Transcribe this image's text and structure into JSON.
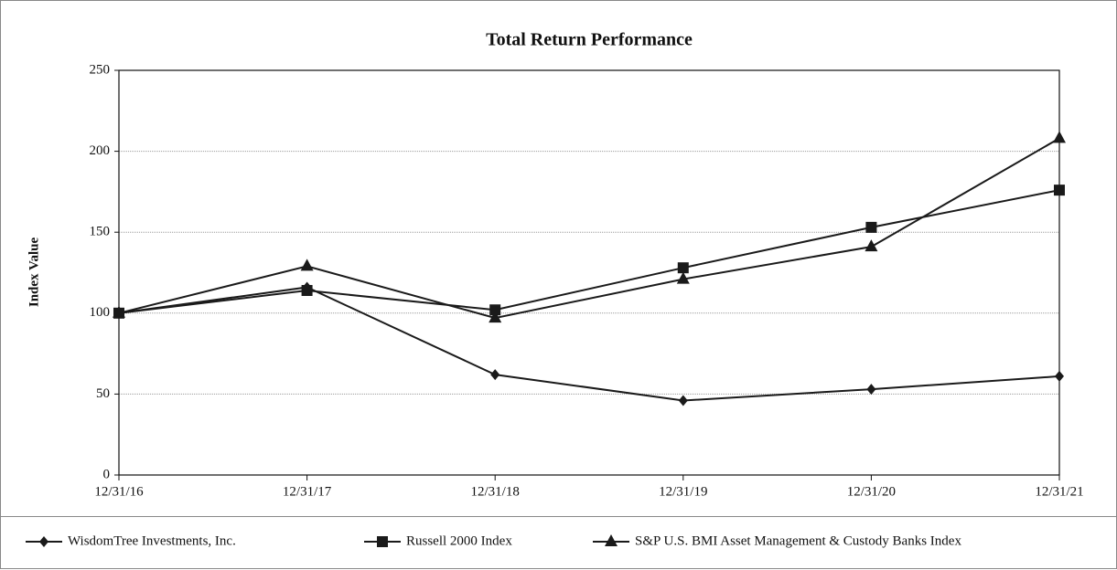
{
  "chart_data": {
    "type": "line",
    "title": "Total Return Performance",
    "y_label": "Index Value",
    "categories": [
      "12/31/16",
      "12/31/17",
      "12/31/18",
      "12/31/19",
      "12/31/20",
      "12/31/21"
    ],
    "series": [
      {
        "name": "WisdomTree Investments, Inc.",
        "color": "#1a1a1a",
        "marker": "diamond",
        "values": [
          100,
          116,
          62,
          46,
          53,
          61
        ]
      },
      {
        "name": "Russell 2000 Index",
        "color": "#1a1a1a",
        "marker": "square",
        "values": [
          100,
          114,
          102,
          128,
          153,
          176
        ]
      },
      {
        "name": "S&P U.S. BMI Asset Management & Custody Banks Index",
        "color": "#1a1a1a",
        "marker": "triangle",
        "values": [
          100,
          129,
          97,
          121,
          141,
          208
        ]
      }
    ],
    "ylim": [
      0,
      250
    ],
    "yticks": [
      0,
      50,
      100,
      150,
      200,
      250
    ],
    "grid": true
  }
}
